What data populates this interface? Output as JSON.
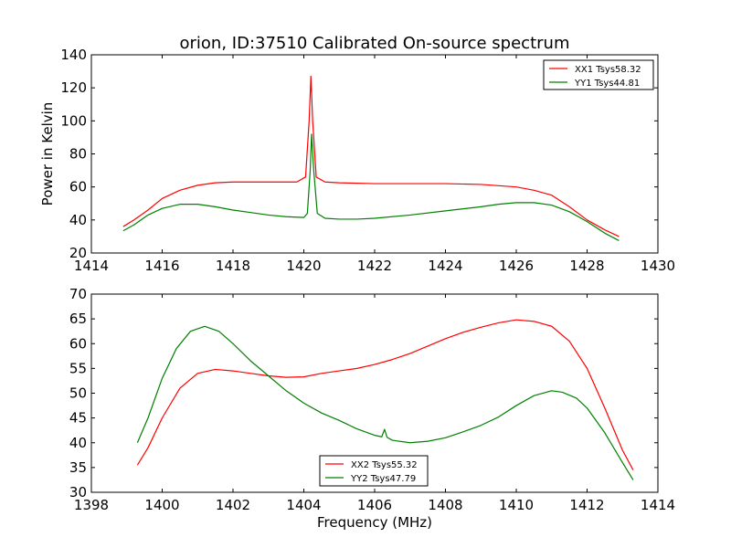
{
  "figure_title": "orion, ID:37510 Calibrated On-source spectrum",
  "chart_data": [
    {
      "type": "line",
      "title": "orion, ID:37510 Calibrated On-source spectrum",
      "xlabel": "",
      "ylabel": "Power in Kelvin",
      "xlim": [
        1414,
        1430
      ],
      "ylim": [
        20,
        140
      ],
      "xticks": [
        "1414",
        "1416",
        "1418",
        "1420",
        "1422",
        "1424",
        "1426",
        "1428",
        "1430"
      ],
      "yticks": [
        "20",
        "40",
        "60",
        "80",
        "100",
        "120",
        "140"
      ],
      "legend_position": "top-right",
      "grid": false,
      "series": [
        {
          "name": "XX1 Tsys58.32",
          "color": "#ff0000",
          "points": [
            [
              1414.9,
              36
            ],
            [
              1415.2,
              40
            ],
            [
              1415.6,
              46
            ],
            [
              1416.0,
              53
            ],
            [
              1416.5,
              58
            ],
            [
              1417.0,
              61
            ],
            [
              1417.5,
              62.5
            ],
            [
              1418.0,
              63
            ],
            [
              1419.0,
              63
            ],
            [
              1419.8,
              63
            ],
            [
              1420.05,
              66
            ],
            [
              1420.15,
              100
            ],
            [
              1420.2,
              127
            ],
            [
              1420.25,
              100
            ],
            [
              1420.35,
              66
            ],
            [
              1420.6,
              63
            ],
            [
              1421.0,
              62.5
            ],
            [
              1422.0,
              62
            ],
            [
              1423.0,
              62
            ],
            [
              1424.0,
              62
            ],
            [
              1425.0,
              61.5
            ],
            [
              1426.0,
              60
            ],
            [
              1426.5,
              58
            ],
            [
              1427.0,
              55
            ],
            [
              1427.5,
              48
            ],
            [
              1428.0,
              40
            ],
            [
              1428.5,
              34
            ],
            [
              1428.9,
              30
            ]
          ]
        },
        {
          "name": "YY1 Tsys44.81",
          "color": "#008000",
          "points": [
            [
              1414.9,
              33.5
            ],
            [
              1415.2,
              37
            ],
            [
              1415.6,
              43
            ],
            [
              1416.0,
              47
            ],
            [
              1416.5,
              49.5
            ],
            [
              1417.0,
              49.5
            ],
            [
              1417.5,
              48
            ],
            [
              1418.0,
              46
            ],
            [
              1418.5,
              44.5
            ],
            [
              1419.0,
              43
            ],
            [
              1419.5,
              42
            ],
            [
              1420.0,
              41.5
            ],
            [
              1420.1,
              44
            ],
            [
              1420.18,
              70
            ],
            [
              1420.22,
              92
            ],
            [
              1420.28,
              70
            ],
            [
              1420.38,
              44
            ],
            [
              1420.6,
              41
            ],
            [
              1421.0,
              40.5
            ],
            [
              1421.5,
              40.5
            ],
            [
              1422.0,
              41
            ],
            [
              1423.0,
              43
            ],
            [
              1424.0,
              45.5
            ],
            [
              1425.0,
              48
            ],
            [
              1425.5,
              49.5
            ],
            [
              1426.0,
              50.5
            ],
            [
              1426.5,
              50.5
            ],
            [
              1427.0,
              49
            ],
            [
              1427.5,
              45
            ],
            [
              1428.0,
              39
            ],
            [
              1428.5,
              32
            ],
            [
              1428.9,
              27.5
            ]
          ]
        }
      ]
    },
    {
      "type": "line",
      "title": "",
      "xlabel": "Frequency (MHz)",
      "ylabel": "",
      "xlim": [
        1398,
        1414
      ],
      "ylim": [
        30,
        70
      ],
      "xticks": [
        "1398",
        "1400",
        "1402",
        "1404",
        "1406",
        "1408",
        "1410",
        "1412",
        "1414"
      ],
      "yticks": [
        "30",
        "35",
        "40",
        "45",
        "50",
        "55",
        "60",
        "65",
        "70"
      ],
      "legend_position": "lower-center",
      "grid": false,
      "series": [
        {
          "name": "XX2 Tsys55.32",
          "color": "#ff0000",
          "points": [
            [
              1399.3,
              35.5
            ],
            [
              1399.6,
              39
            ],
            [
              1400.0,
              45
            ],
            [
              1400.5,
              51
            ],
            [
              1401.0,
              54
            ],
            [
              1401.5,
              54.8
            ],
            [
              1402.0,
              54.5
            ],
            [
              1402.5,
              54
            ],
            [
              1403.0,
              53.5
            ],
            [
              1403.5,
              53.2
            ],
            [
              1404.0,
              53.3
            ],
            [
              1404.5,
              54
            ],
            [
              1405.0,
              54.5
            ],
            [
              1405.5,
              55
            ],
            [
              1406.0,
              55.8
            ],
            [
              1406.5,
              56.8
            ],
            [
              1407.0,
              58
            ],
            [
              1407.5,
              59.5
            ],
            [
              1408.0,
              61
            ],
            [
              1408.5,
              62.3
            ],
            [
              1409.0,
              63.3
            ],
            [
              1409.5,
              64.2
            ],
            [
              1410.0,
              64.8
            ],
            [
              1410.5,
              64.5
            ],
            [
              1411.0,
              63.5
            ],
            [
              1411.5,
              60.5
            ],
            [
              1412.0,
              55
            ],
            [
              1412.5,
              47
            ],
            [
              1413.0,
              38.5
            ],
            [
              1413.3,
              34.5
            ]
          ]
        },
        {
          "name": "YY2 Tsys47.79",
          "color": "#008000",
          "points": [
            [
              1399.3,
              40
            ],
            [
              1399.6,
              45
            ],
            [
              1400.0,
              53
            ],
            [
              1400.4,
              59
            ],
            [
              1400.8,
              62.5
            ],
            [
              1401.2,
              63.5
            ],
            [
              1401.6,
              62.5
            ],
            [
              1402.0,
              60
            ],
            [
              1402.5,
              56.5
            ],
            [
              1403.0,
              53.5
            ],
            [
              1403.5,
              50.5
            ],
            [
              1404.0,
              48
            ],
            [
              1404.5,
              46
            ],
            [
              1405.0,
              44.5
            ],
            [
              1405.5,
              42.8
            ],
            [
              1406.0,
              41.5
            ],
            [
              1406.2,
              41.2
            ],
            [
              1406.28,
              42.7
            ],
            [
              1406.35,
              41.1
            ],
            [
              1406.5,
              40.5
            ],
            [
              1407.0,
              40
            ],
            [
              1407.5,
              40.3
            ],
            [
              1408.0,
              41
            ],
            [
              1408.5,
              42.2
            ],
            [
              1409.0,
              43.5
            ],
            [
              1409.5,
              45.2
            ],
            [
              1410.0,
              47.5
            ],
            [
              1410.5,
              49.5
            ],
            [
              1411.0,
              50.5
            ],
            [
              1411.3,
              50.2
            ],
            [
              1411.7,
              49
            ],
            [
              1412.0,
              47
            ],
            [
              1412.5,
              42
            ],
            [
              1413.0,
              36
            ],
            [
              1413.3,
              32.5
            ]
          ]
        }
      ]
    }
  ]
}
